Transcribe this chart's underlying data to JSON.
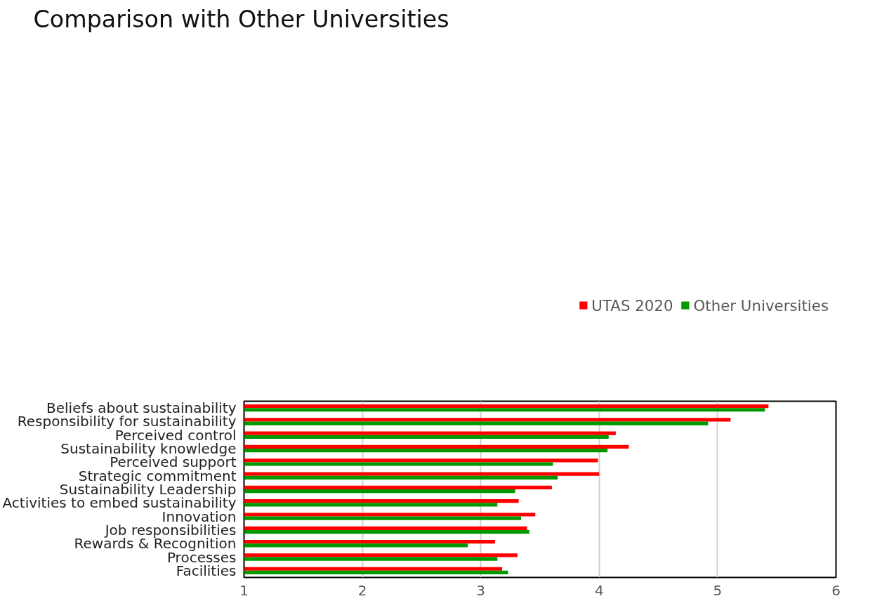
{
  "chart_data": {
    "type": "bar",
    "orientation": "horizontal",
    "title": "Comparison with Other Universities",
    "categories": [
      "Beliefs about sustainability",
      "Responsibility for sustainability",
      "Perceived control",
      "Sustainability knowledge",
      "Perceived support",
      "Strategic commitment",
      "Sustainability Leadership",
      "Activities to embed sustainability",
      "Innovation",
      "Job responsibilities",
      "Rewards & Recognition",
      "Processes",
      "Facilities"
    ],
    "series": [
      {
        "name": "UTAS 2020",
        "color": "#ff0000",
        "values": [
          5.43,
          5.11,
          4.14,
          4.25,
          3.99,
          4.0,
          3.6,
          3.32,
          3.46,
          3.39,
          3.12,
          3.31,
          3.18
        ]
      },
      {
        "name": "Other Universities",
        "color": "#009900",
        "values": [
          5.4,
          4.92,
          4.08,
          4.07,
          3.61,
          3.65,
          3.29,
          3.14,
          3.34,
          3.41,
          2.89,
          3.14,
          3.23
        ]
      }
    ],
    "xlim": [
      1,
      6
    ],
    "xticks": [
      1,
      2,
      3,
      4,
      5,
      6
    ],
    "grid": "x",
    "legend": "top right"
  }
}
